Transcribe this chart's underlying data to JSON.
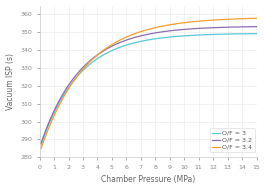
{
  "title": "",
  "xlabel": "Chamber Pressure (MPa)",
  "ylabel": "Vacuum ISP (s)",
  "xlim": [
    0,
    15
  ],
  "ylim": [
    280,
    365
  ],
  "yticks": [
    280,
    290,
    300,
    310,
    320,
    330,
    340,
    350,
    360
  ],
  "xticks": [
    0,
    1,
    2,
    3,
    4,
    5,
    6,
    7,
    8,
    9,
    10,
    11,
    12,
    13,
    14,
    15
  ],
  "series": [
    {
      "label": "O/F = 3",
      "color": "#5BC8D8",
      "A": 349.5,
      "B": -65.0,
      "k": 0.38
    },
    {
      "label": "O/F = 3.2",
      "color": "#8B6DB0",
      "A": 353.5,
      "B": -68.0,
      "k": 0.36
    },
    {
      "label": "O/F = 3.4",
      "color": "#F0A030",
      "A": 358.5,
      "B": -76.0,
      "k": 0.32
    }
  ],
  "legend_loc": "lower right",
  "grid_color": "#E8E8E8",
  "background_color": "#FFFFFF",
  "tick_fontsize": 4.5,
  "label_fontsize": 5.5,
  "legend_fontsize": 4.5,
  "line_width": 0.9
}
